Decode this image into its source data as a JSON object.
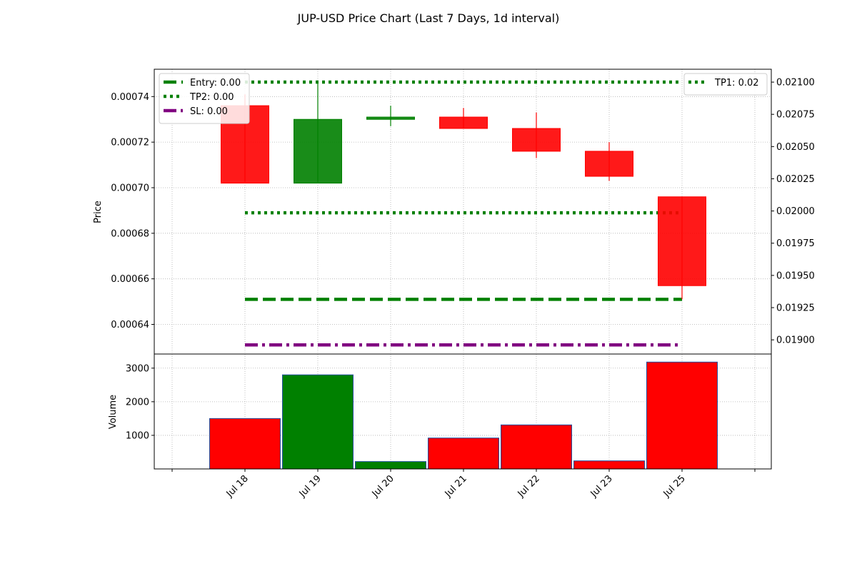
{
  "chart_data": {
    "type": "candlestick",
    "title": "JUP-USD Price Chart (Last 7 Days, 1d interval)",
    "price_panel": {
      "ylabel": "Price",
      "ylim": [
        0.000627,
        0.000752
      ],
      "yticks": [
        "0.00064",
        "0.00066",
        "0.00068",
        "0.00070",
        "0.00072",
        "0.00074"
      ],
      "right_axis": {
        "ylim": [
          0.01889,
          0.0211
        ],
        "yticks": [
          "0.01900",
          "0.01925",
          "0.01950",
          "0.01975",
          "0.02000",
          "0.02025",
          "0.02050",
          "0.02075",
          "0.02100"
        ]
      },
      "grid": true
    },
    "volume_panel": {
      "ylabel": "Volume",
      "ylim": [
        0,
        3420
      ],
      "yticks": [
        "1000",
        "2000",
        "3000"
      ],
      "grid": true
    },
    "x_axis": {
      "tick_labels": [
        "Jul 18",
        "Jul 19",
        "Jul 20",
        "Jul 21",
        "Jul 22",
        "Jul 23",
        "Jul 25"
      ],
      "tick_rotation": 45
    },
    "candles": [
      {
        "date": "Jul 18",
        "open": 0.000736,
        "high": 0.000741,
        "low": 0.000702,
        "close": 0.000702,
        "volume": 1500,
        "direction": "down"
      },
      {
        "date": "Jul 19",
        "open": 0.000702,
        "high": 0.000746,
        "low": 0.000702,
        "close": 0.00073,
        "volume": 2800,
        "direction": "up"
      },
      {
        "date": "Jul 20",
        "open": 0.00073,
        "high": 0.000736,
        "low": 0.000727,
        "close": 0.000731,
        "volume": 220,
        "direction": "up"
      },
      {
        "date": "Jul 21",
        "open": 0.000731,
        "high": 0.000735,
        "low": 0.000726,
        "close": 0.000726,
        "volume": 920,
        "direction": "down"
      },
      {
        "date": "Jul 22",
        "open": 0.000726,
        "high": 0.000733,
        "low": 0.000713,
        "close": 0.000716,
        "volume": 1310,
        "direction": "down"
      },
      {
        "date": "Jul 23",
        "open": 0.000716,
        "high": 0.00072,
        "low": 0.000703,
        "close": 0.000705,
        "volume": 240,
        "direction": "down"
      },
      {
        "date": "Jul 25",
        "open": 0.000696,
        "high": 0.000696,
        "low": 0.000651,
        "close": 0.000657,
        "volume": 3180,
        "direction": "down"
      }
    ],
    "levels": [
      {
        "name": "Entry: 0.00",
        "value": 0.000651,
        "axis": "left",
        "color": "#008000",
        "style": "dashed",
        "from": "Jul 18",
        "to": "Jul 25"
      },
      {
        "name": "TP2: 0.00",
        "value": 0.000689,
        "axis": "left",
        "color": "#008000",
        "style": "dotted",
        "from": "Jul 18",
        "to": "Jul 25"
      },
      {
        "name": "SL: 0.00",
        "value": 0.000631,
        "axis": "left",
        "color": "#800080",
        "style": "dashdot",
        "from": "Jul 18",
        "to": "Jul 25"
      },
      {
        "name": "TP1: 0.02",
        "value": 0.021,
        "axis": "right",
        "color": "#008000",
        "style": "dotted",
        "from": "Jul 18",
        "to": "Jul 25"
      }
    ],
    "legends": {
      "left": [
        "Entry: 0.00",
        "TP2: 0.00",
        "SL: 0.00"
      ],
      "right": [
        "TP1: 0.02"
      ],
      "left_placement": "top-left",
      "right_placement": "top-right"
    },
    "colors": {
      "up": "#008000",
      "down": "#ff0000",
      "grid": "#b0b0b0",
      "volume_edge": "#1f4e9f"
    }
  }
}
